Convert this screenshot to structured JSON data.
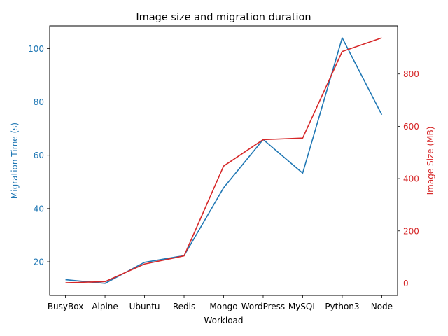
{
  "chart_data": {
    "type": "line",
    "title": "Image size and migration duration",
    "xlabel": "Workload",
    "categories": [
      "BusyBox",
      "Alpine",
      "Ubuntu",
      "Redis",
      "Mongo",
      "WordPress",
      "MySQL",
      "Python3",
      "Node"
    ],
    "y_left": {
      "label": "Migration Time (s)",
      "color": "#1f77b4",
      "ylim": [
        7.4,
        108.5
      ],
      "ticks": [
        20,
        40,
        60,
        80,
        100
      ]
    },
    "y_right": {
      "label": "Image Size (MB)",
      "color": "#d62728",
      "ylim": [
        -47,
        984
      ],
      "ticks": [
        0,
        200,
        400,
        600,
        800
      ]
    },
    "series": [
      {
        "axis": "left",
        "color": "#1f77b4",
        "values": [
          13.3,
          11.9,
          19.8,
          22.3,
          47.8,
          65.9,
          53.3,
          104.0,
          75.2
        ]
      },
      {
        "axis": "right",
        "color": "#d62728",
        "values": [
          1.2,
          5.6,
          72.9,
          104.0,
          448.0,
          549.0,
          555.0,
          886.0,
          938.0
        ]
      }
    ],
    "grid": false,
    "legend": "none"
  }
}
